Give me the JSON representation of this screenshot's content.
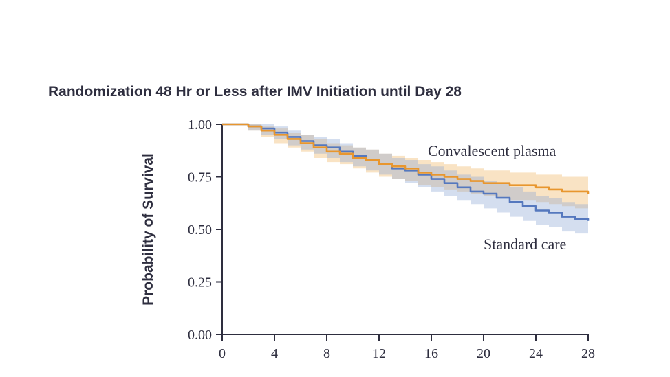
{
  "figure": {
    "title": "Randomization 48 Hr or Less after IMV Initiation until Day 28",
    "ylabel": "Probability of Survival"
  },
  "chart_data": {
    "type": "line",
    "variant": "kaplan-meier-step-with-confidence-bands",
    "title": "Randomization 48 Hr or Less after IMV Initiation until Day 28",
    "xlabel": "",
    "ylabel": "Probability of Survival",
    "xlim": [
      0,
      28
    ],
    "ylim": [
      0,
      1
    ],
    "xticks": [
      0,
      4,
      8,
      12,
      16,
      20,
      24,
      28
    ],
    "ytick_values": [
      0,
      0.25,
      0.5,
      0.75,
      1.0
    ],
    "ytick_labels": [
      "0.00",
      "0.25",
      "0.50",
      "0.75",
      "1.00"
    ],
    "grid": false,
    "legend_position": "inline-annotations",
    "axis_color": "#2e2e3f",
    "series": [
      {
        "name": "Convalescent plasma",
        "color": "#E8962E",
        "band_color": "#F0B564",
        "band_opacity": 0.38,
        "times": [
          0,
          1,
          2,
          3,
          4,
          5,
          6,
          7,
          8,
          9,
          10,
          11,
          12,
          13,
          14,
          15,
          16,
          17,
          18,
          19,
          20,
          21,
          22,
          23,
          24,
          25,
          26,
          27,
          28
        ],
        "survival": [
          1.0,
          1.0,
          0.99,
          0.97,
          0.95,
          0.93,
          0.91,
          0.89,
          0.87,
          0.86,
          0.84,
          0.83,
          0.81,
          0.8,
          0.79,
          0.77,
          0.76,
          0.75,
          0.74,
          0.73,
          0.72,
          0.72,
          0.71,
          0.71,
          0.7,
          0.69,
          0.68,
          0.68,
          0.67
        ],
        "ci_upper": [
          1.0,
          1.0,
          1.0,
          0.99,
          0.98,
          0.96,
          0.95,
          0.93,
          0.91,
          0.9,
          0.89,
          0.88,
          0.86,
          0.85,
          0.84,
          0.83,
          0.82,
          0.81,
          0.8,
          0.79,
          0.78,
          0.78,
          0.77,
          0.77,
          0.76,
          0.76,
          0.75,
          0.75,
          0.74
        ],
        "ci_lower": [
          1.0,
          1.0,
          0.97,
          0.94,
          0.91,
          0.89,
          0.87,
          0.84,
          0.82,
          0.81,
          0.79,
          0.77,
          0.75,
          0.74,
          0.73,
          0.71,
          0.7,
          0.69,
          0.68,
          0.67,
          0.66,
          0.65,
          0.64,
          0.64,
          0.63,
          0.62,
          0.61,
          0.6,
          0.59
        ]
      },
      {
        "name": "Standard care",
        "color": "#5578BE",
        "band_color": "#8FA7D6",
        "band_opacity": 0.38,
        "times": [
          0,
          1,
          2,
          3,
          4,
          5,
          6,
          7,
          8,
          9,
          10,
          11,
          12,
          13,
          14,
          15,
          16,
          17,
          18,
          19,
          20,
          21,
          22,
          23,
          24,
          25,
          26,
          27,
          28
        ],
        "survival": [
          1.0,
          1.0,
          0.99,
          0.98,
          0.96,
          0.94,
          0.92,
          0.9,
          0.89,
          0.87,
          0.85,
          0.83,
          0.81,
          0.79,
          0.78,
          0.76,
          0.74,
          0.72,
          0.7,
          0.68,
          0.67,
          0.65,
          0.63,
          0.61,
          0.59,
          0.58,
          0.56,
          0.55,
          0.54
        ],
        "ci_upper": [
          1.0,
          1.0,
          1.0,
          1.0,
          0.99,
          0.97,
          0.95,
          0.94,
          0.93,
          0.91,
          0.89,
          0.88,
          0.86,
          0.84,
          0.83,
          0.81,
          0.8,
          0.78,
          0.76,
          0.75,
          0.73,
          0.72,
          0.7,
          0.68,
          0.66,
          0.65,
          0.63,
          0.62,
          0.61
        ],
        "ci_lower": [
          1.0,
          1.0,
          0.97,
          0.95,
          0.93,
          0.9,
          0.88,
          0.86,
          0.84,
          0.82,
          0.8,
          0.78,
          0.76,
          0.74,
          0.72,
          0.7,
          0.68,
          0.66,
          0.64,
          0.62,
          0.6,
          0.58,
          0.56,
          0.54,
          0.52,
          0.51,
          0.49,
          0.48,
          0.47
        ]
      }
    ]
  }
}
